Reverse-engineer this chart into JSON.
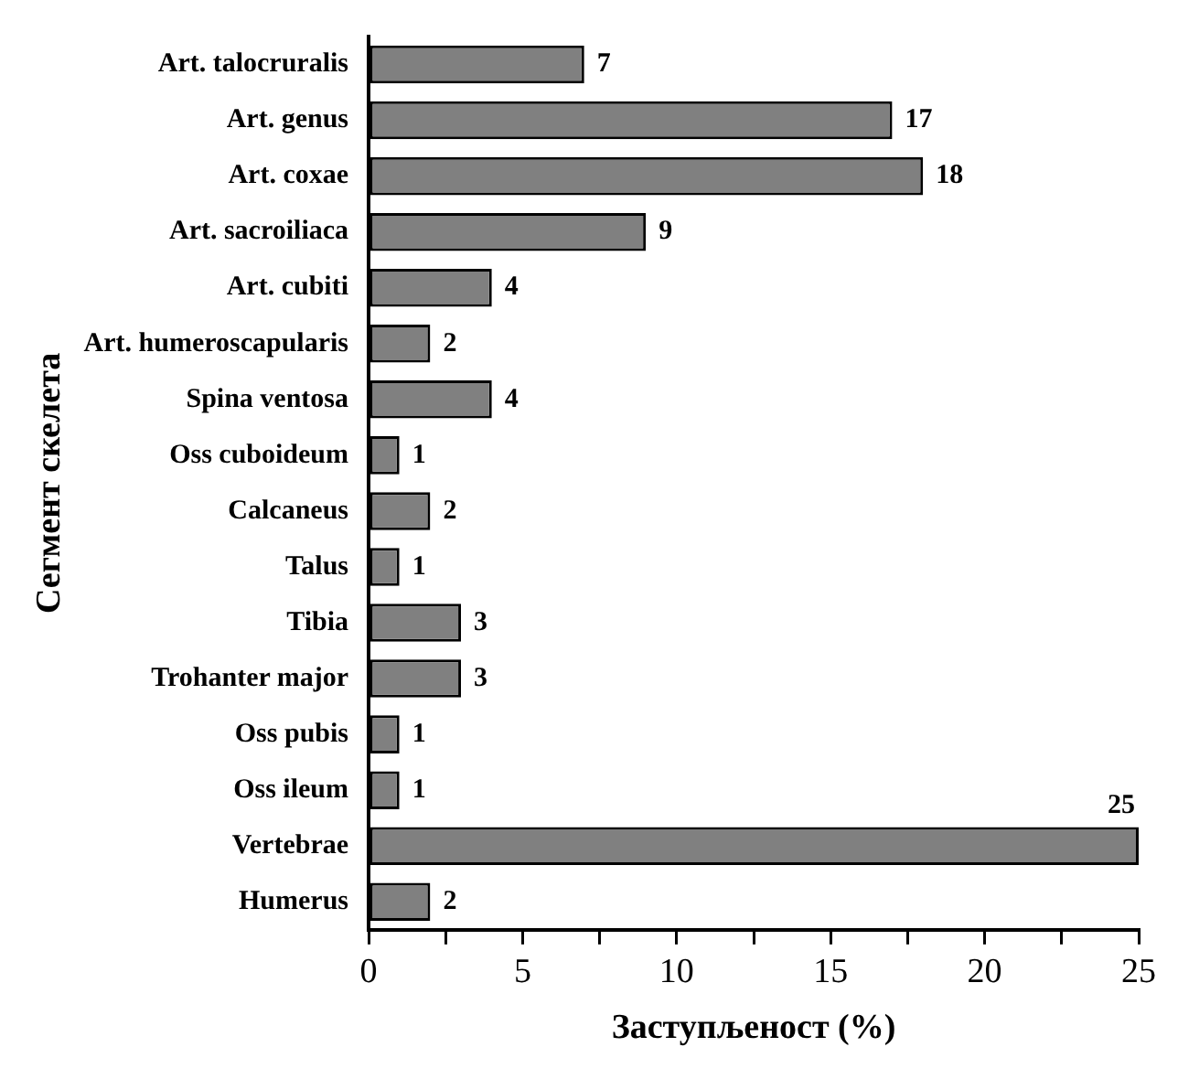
{
  "chart_data": {
    "type": "bar",
    "orientation": "horizontal",
    "xlabel": "Заступљеност (%)",
    "ylabel": "Сегмент скелета",
    "categories": [
      "Art. talocruralis",
      "Art. genus",
      "Art. coxae",
      "Art. sacroiliaca",
      "Art. cubiti",
      "Art. humeroscapularis",
      "Spina ventosa",
      "Oss cuboideum",
      "Calcaneus",
      "Talus",
      "Tibia",
      "Trohanter major",
      "Oss pubis",
      "Oss ileum",
      "Vertebrae",
      "Humerus"
    ],
    "values": [
      7,
      17,
      18,
      9,
      4,
      2,
      4,
      1,
      2,
      1,
      3,
      3,
      1,
      1,
      25,
      2
    ],
    "color": "#808080",
    "xlim": [
      0,
      25
    ],
    "xticks": [
      0,
      {
        "value": 2.5,
        "label": null
      },
      5,
      {
        "value": 7.5,
        "label": null
      },
      10,
      {
        "value": 12.5,
        "label": null
      },
      15,
      {
        "value": 17.5,
        "label": null
      },
      20,
      {
        "value": 22.5,
        "label": null
      },
      25
    ],
    "data_labels": true,
    "grid": false,
    "legend": false
  }
}
